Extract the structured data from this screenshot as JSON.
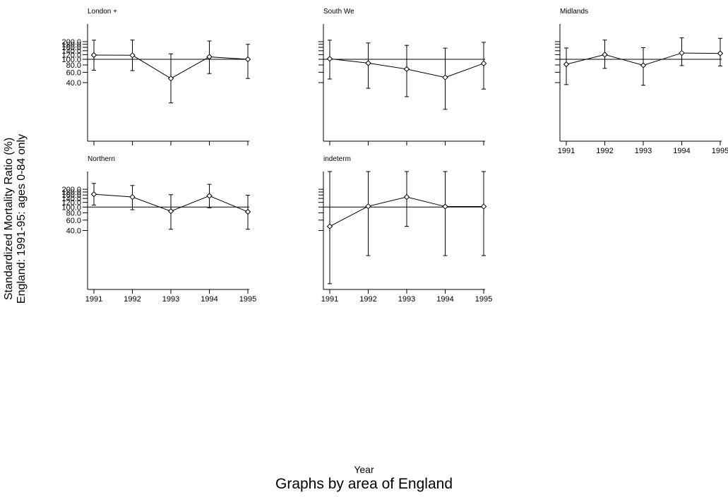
{
  "ylabel_line1": "Standardized Mortality Ratio (%)",
  "ylabel_line2": "England: 1991-95: ages 0-84 only",
  "xlabel": "Year",
  "note": "Graphs by area of England",
  "chart_data": {
    "type": "line",
    "subtype": "small multiples with error bars",
    "x_categories": [
      "1991",
      "1992",
      "1993",
      "1994",
      "1995"
    ],
    "y_ticks": [
      "40.0",
      "60.0",
      "80.0",
      "100.0",
      "120.0",
      "140.0",
      "160.0",
      "180.0",
      "200.0"
    ],
    "y_scale": "log",
    "ylim": [
      4,
      400
    ],
    "reference_line": 100,
    "marker": "hollow diamond",
    "panels": [
      {
        "title": "London +",
        "y": [
          118,
          117,
          47,
          110,
          100
        ],
        "lower": [
          65,
          64,
          18,
          57,
          47
        ],
        "upper": [
          212,
          213,
          124,
          205,
          180
        ],
        "show_ytick_labels": true,
        "show_xtick_labels": false
      },
      {
        "title": "South We",
        "y": [
          102,
          86,
          68,
          49,
          85
        ],
        "lower": [
          46,
          32,
          23,
          14,
          31
        ],
        "upper": [
          212,
          190,
          173,
          155,
          195
        ],
        "show_ytick_labels": false,
        "show_xtick_labels": false
      },
      {
        "title": "Midlands",
        "y": [
          82,
          120,
          79,
          128,
          126
        ],
        "lower": [
          37,
          70,
          36,
          78,
          77
        ],
        "upper": [
          156,
          213,
          158,
          232,
          228
        ],
        "show_ytick_labels": false,
        "show_xtick_labels": true
      },
      {
        "title": "Northern",
        "y": [
          165,
          148,
          85,
          155,
          83
        ],
        "lower": [
          108,
          90,
          42,
          97,
          42
        ],
        "upper": [
          252,
          232,
          162,
          243,
          159
        ],
        "show_ytick_labels": true,
        "show_xtick_labels": true
      },
      {
        "title": "indeterm",
        "y": [
          47,
          103,
          148,
          102,
          102
        ],
        "lower": [
          5,
          15,
          47,
          15,
          15
        ],
        "upper": [
          400,
          400,
          500,
          400,
          400
        ],
        "show_ytick_labels": false,
        "show_xtick_labels": true
      }
    ]
  }
}
